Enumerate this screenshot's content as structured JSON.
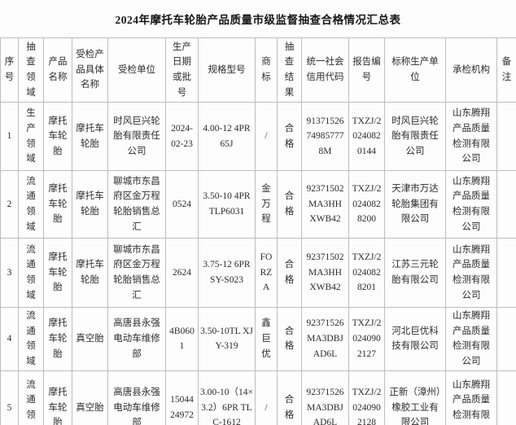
{
  "title": "2024年摩托车轮胎产品质量市级监督抽查合格情况汇总表",
  "table": {
    "headers": [
      "序号",
      "抽查领域",
      "产品名称",
      "受检产品具体名称",
      "受检单位",
      "生产日期或批号",
      "规格型号",
      "商标",
      "抽查结果",
      "统一社会信用代码",
      "报告编号",
      "标称生产单位",
      "承检机构",
      "备注"
    ],
    "rows": [
      [
        "1",
        "生产领域",
        "摩托车轮胎",
        "摩托车轮胎",
        "时风巨兴轮胎有限责任公司",
        "2024-02-23",
        "4.00-12 4PR 65J",
        "/",
        "合格",
        "91371526749857778M",
        "TXZJ/20240820144",
        "时风巨兴轮胎有限责任公司",
        "山东腾翔产品质量检测有限公司",
        ""
      ],
      [
        "2",
        "流通领域",
        "摩托车轮胎",
        "摩托车轮胎",
        "聊城市东昌府区金万程轮胎销售总汇",
        "0524",
        "3.50-10 4PR TLP6031",
        "金万程",
        "合格",
        "92371502MA3HHXWB42",
        "TXZJ/20240828200",
        "天津市万达轮胎集团有限公司",
        "山东腾翔产品质量检测有限公司",
        ""
      ],
      [
        "3",
        "流通领域",
        "摩托车轮胎",
        "摩托车轮胎",
        "聊城市东昌府区金万程轮胎销售总汇",
        "2624",
        "3.75-12 6PR SY-S023",
        "FORZA",
        "合格",
        "92371502MA3HHXWB42",
        "TXZJ/20240828201",
        "江苏三元轮胎有限公司",
        "山东腾翔产品质量检测有限公司",
        ""
      ],
      [
        "4",
        "流通领域",
        "摩托车轮胎",
        "真空胎",
        "高唐县永强电动车维修部",
        "4B0601",
        "3.50-10TL XJY-319",
        "鑫巨优",
        "合格",
        "92371526MA3DBJAD6L",
        "TXZJ/20240902127",
        "河北巨优科技有限公司",
        "山东腾翔产品质量检测有限公司",
        ""
      ],
      [
        "5",
        "流通领域",
        "摩托车轮胎",
        "真空胎",
        "高唐县永强电动车维修部",
        "1504424972",
        "3.00-10（14×3.2）6PR TL C-1612",
        "/",
        "合格",
        "92371526MA3DBJAD6L",
        "TXZJ/20240902128",
        "正新（漳州）橡胶工业有限公司",
        "山东腾翔产品质量检测有限公司",
        ""
      ]
    ]
  }
}
